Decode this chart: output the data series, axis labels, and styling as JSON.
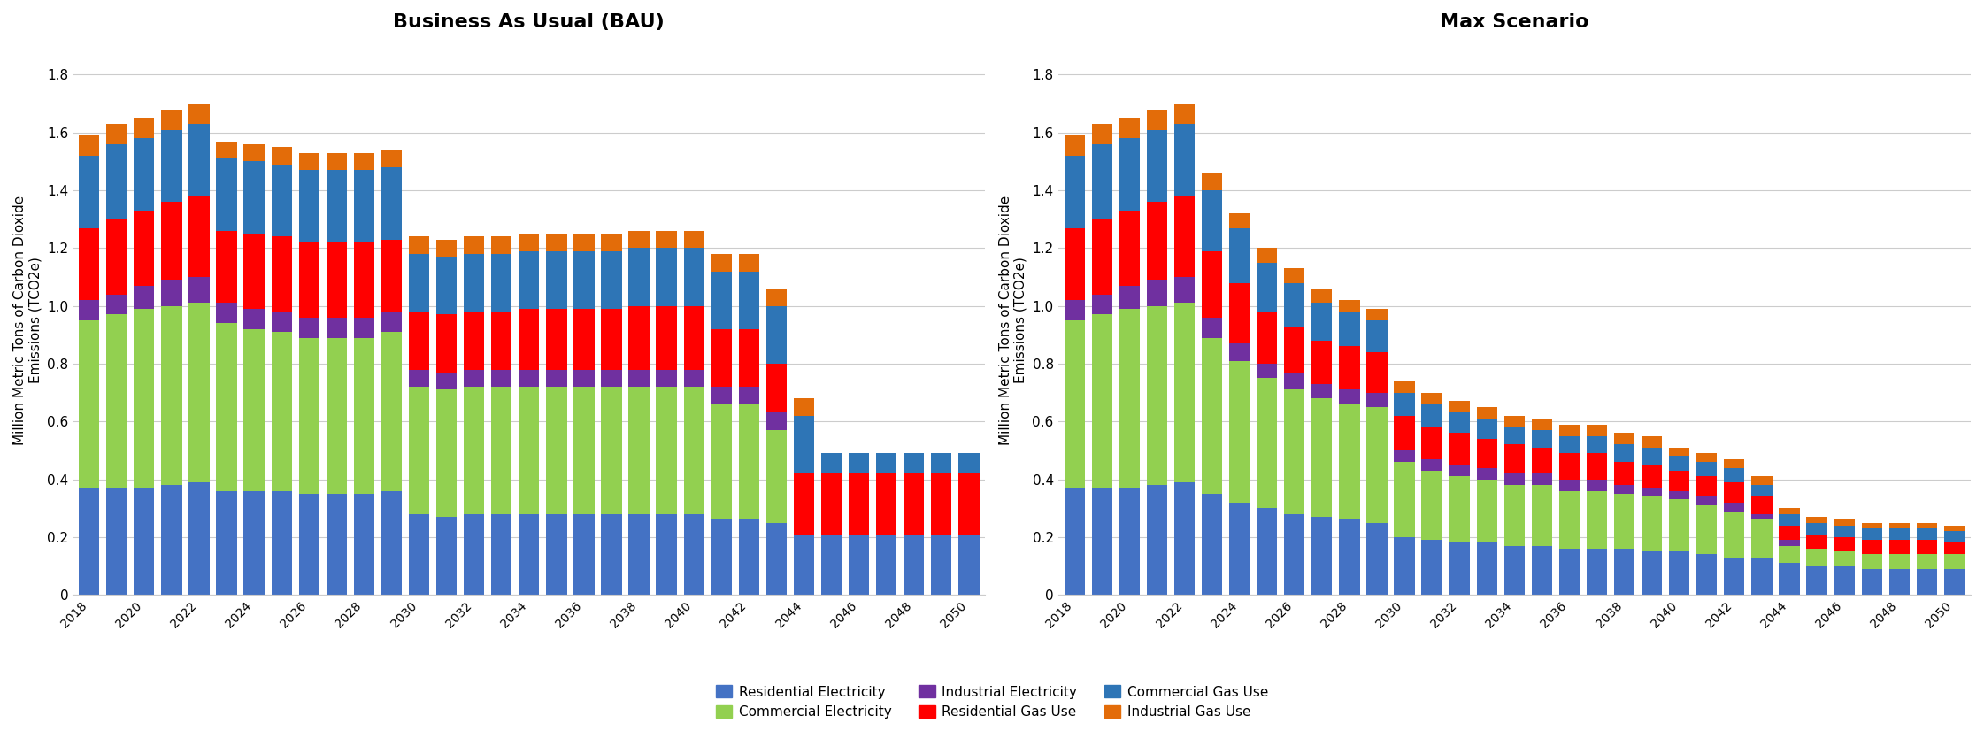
{
  "years": [
    2018,
    2019,
    2020,
    2021,
    2022,
    2023,
    2024,
    2025,
    2026,
    2027,
    2028,
    2029,
    2030,
    2031,
    2032,
    2033,
    2034,
    2035,
    2036,
    2037,
    2038,
    2039,
    2040,
    2041,
    2042,
    2043,
    2044,
    2045,
    2046,
    2047,
    2048,
    2049,
    2050
  ],
  "bau": {
    "residential_electricity": [
      0.37,
      0.37,
      0.37,
      0.38,
      0.39,
      0.36,
      0.36,
      0.36,
      0.35,
      0.35,
      0.35,
      0.36,
      0.28,
      0.27,
      0.28,
      0.28,
      0.28,
      0.28,
      0.28,
      0.28,
      0.28,
      0.28,
      0.28,
      0.26,
      0.26,
      0.25,
      0.21,
      0.21,
      0.21,
      0.21,
      0.21,
      0.21,
      0.21
    ],
    "commercial_electricity": [
      0.58,
      0.6,
      0.62,
      0.62,
      0.62,
      0.58,
      0.56,
      0.55,
      0.54,
      0.54,
      0.54,
      0.55,
      0.44,
      0.44,
      0.44,
      0.44,
      0.44,
      0.44,
      0.44,
      0.44,
      0.44,
      0.44,
      0.44,
      0.4,
      0.4,
      0.32,
      0.0,
      0.0,
      0.0,
      0.0,
      0.0,
      0.0,
      0.0
    ],
    "industrial_electricity": [
      0.07,
      0.07,
      0.08,
      0.09,
      0.09,
      0.07,
      0.07,
      0.07,
      0.07,
      0.07,
      0.07,
      0.07,
      0.06,
      0.06,
      0.06,
      0.06,
      0.06,
      0.06,
      0.06,
      0.06,
      0.06,
      0.06,
      0.06,
      0.06,
      0.06,
      0.06,
      0.0,
      0.0,
      0.0,
      0.0,
      0.0,
      0.0,
      0.0
    ],
    "residential_gas": [
      0.25,
      0.26,
      0.26,
      0.27,
      0.28,
      0.25,
      0.26,
      0.26,
      0.26,
      0.26,
      0.26,
      0.25,
      0.2,
      0.2,
      0.2,
      0.2,
      0.21,
      0.21,
      0.21,
      0.21,
      0.22,
      0.22,
      0.22,
      0.2,
      0.2,
      0.17,
      0.21,
      0.21,
      0.21,
      0.21,
      0.21,
      0.21,
      0.21
    ],
    "commercial_gas": [
      0.25,
      0.26,
      0.25,
      0.25,
      0.25,
      0.25,
      0.25,
      0.25,
      0.25,
      0.25,
      0.25,
      0.25,
      0.2,
      0.2,
      0.2,
      0.2,
      0.2,
      0.2,
      0.2,
      0.2,
      0.2,
      0.2,
      0.2,
      0.2,
      0.2,
      0.2,
      0.2,
      0.07,
      0.07,
      0.07,
      0.07,
      0.07,
      0.07
    ],
    "industrial_gas": [
      0.07,
      0.07,
      0.07,
      0.07,
      0.07,
      0.06,
      0.06,
      0.06,
      0.06,
      0.06,
      0.06,
      0.06,
      0.06,
      0.06,
      0.06,
      0.06,
      0.06,
      0.06,
      0.06,
      0.06,
      0.06,
      0.06,
      0.06,
      0.06,
      0.06,
      0.06,
      0.06,
      0.0,
      0.0,
      0.0,
      0.0,
      0.0,
      0.0
    ]
  },
  "max": {
    "residential_electricity": [
      0.37,
      0.37,
      0.37,
      0.38,
      0.39,
      0.35,
      0.32,
      0.3,
      0.28,
      0.27,
      0.26,
      0.25,
      0.2,
      0.19,
      0.18,
      0.18,
      0.17,
      0.17,
      0.16,
      0.16,
      0.16,
      0.15,
      0.15,
      0.14,
      0.13,
      0.13,
      0.11,
      0.1,
      0.1,
      0.09,
      0.09,
      0.09,
      0.09
    ],
    "commercial_electricity": [
      0.58,
      0.6,
      0.62,
      0.62,
      0.62,
      0.54,
      0.49,
      0.45,
      0.43,
      0.41,
      0.4,
      0.4,
      0.26,
      0.24,
      0.23,
      0.22,
      0.21,
      0.21,
      0.2,
      0.2,
      0.19,
      0.19,
      0.18,
      0.17,
      0.16,
      0.13,
      0.06,
      0.06,
      0.05,
      0.05,
      0.05,
      0.05,
      0.05
    ],
    "industrial_electricity": [
      0.07,
      0.07,
      0.08,
      0.09,
      0.09,
      0.07,
      0.06,
      0.05,
      0.06,
      0.05,
      0.05,
      0.05,
      0.04,
      0.04,
      0.04,
      0.04,
      0.04,
      0.04,
      0.04,
      0.04,
      0.03,
      0.03,
      0.03,
      0.03,
      0.03,
      0.02,
      0.02,
      0.0,
      0.0,
      0.0,
      0.0,
      0.0,
      0.0
    ],
    "residential_gas": [
      0.25,
      0.26,
      0.26,
      0.27,
      0.28,
      0.23,
      0.21,
      0.18,
      0.16,
      0.15,
      0.15,
      0.14,
      0.12,
      0.11,
      0.11,
      0.1,
      0.1,
      0.09,
      0.09,
      0.09,
      0.08,
      0.08,
      0.07,
      0.07,
      0.07,
      0.06,
      0.05,
      0.05,
      0.05,
      0.05,
      0.05,
      0.05,
      0.04
    ],
    "commercial_gas": [
      0.25,
      0.26,
      0.25,
      0.25,
      0.25,
      0.21,
      0.19,
      0.17,
      0.15,
      0.13,
      0.12,
      0.11,
      0.08,
      0.08,
      0.07,
      0.07,
      0.06,
      0.06,
      0.06,
      0.06,
      0.06,
      0.06,
      0.05,
      0.05,
      0.05,
      0.04,
      0.04,
      0.04,
      0.04,
      0.04,
      0.04,
      0.04,
      0.04
    ],
    "industrial_gas": [
      0.07,
      0.07,
      0.07,
      0.07,
      0.07,
      0.06,
      0.05,
      0.05,
      0.05,
      0.05,
      0.04,
      0.04,
      0.04,
      0.04,
      0.04,
      0.04,
      0.04,
      0.04,
      0.04,
      0.04,
      0.04,
      0.04,
      0.03,
      0.03,
      0.03,
      0.03,
      0.02,
      0.02,
      0.02,
      0.02,
      0.02,
      0.02,
      0.02
    ]
  },
  "colors": {
    "residential_electricity": "#4472C4",
    "commercial_electricity": "#92D050",
    "industrial_electricity": "#7030A0",
    "residential_gas": "#FF0000",
    "commercial_gas": "#2E75B6",
    "industrial_gas": "#E36C09"
  },
  "legend_labels": [
    "Residential Electricity",
    "Commercial Electricity",
    "Industrial Electricity",
    "Residential Gas Use",
    "Commercial Gas Use",
    "Industrial Gas Use"
  ],
  "legend_colors": [
    "#4472C4",
    "#92D050",
    "#7030A0",
    "#FF0000",
    "#2E75B6",
    "#E36C09"
  ],
  "ylabel": "Million Metric Tons of Carbon Dioxide\nEmissions (TCO2e)",
  "ylim": [
    0,
    1.9
  ],
  "yticks": [
    0,
    0.2,
    0.4,
    0.6,
    0.8,
    1.0,
    1.2,
    1.4,
    1.6,
    1.8
  ],
  "title_bau": "Business As Usual (BAU)",
  "title_max": "Max Scenario",
  "background_color": "#FFFFFF"
}
